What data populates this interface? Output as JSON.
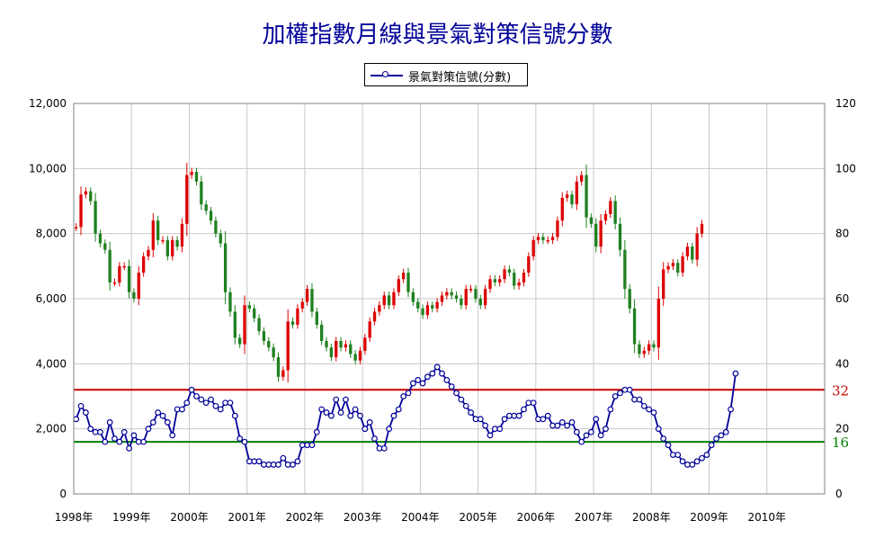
{
  "chart_data": {
    "type": "candlestick+line",
    "title": "加權指數月線與景氣對策信號分數",
    "legend": {
      "label": "景氣對策信號(分數)",
      "placement": "top-center"
    },
    "left_axis": {
      "ylim": [
        0,
        12000
      ],
      "ticks": [
        "0",
        "2,000",
        "4,000",
        "6,000",
        "8,000",
        "10,000",
        "12,000"
      ],
      "values": [
        0,
        2000,
        4000,
        6000,
        8000,
        10000,
        12000
      ]
    },
    "right_axis": {
      "ylim": [
        0,
        120
      ],
      "ticks": [
        "0",
        "20",
        "40",
        "60",
        "80",
        "100",
        "120"
      ],
      "values": [
        0,
        20,
        40,
        60,
        80,
        100,
        120
      ]
    },
    "x_axis": {
      "start": 1998.0,
      "end": 2011.0,
      "labels": [
        "1998年",
        "1999年",
        "2000年",
        "2001年",
        "2002年",
        "2003年",
        "2004年",
        "2005年",
        "2006年",
        "2007年",
        "2008年",
        "2009年",
        "2010年"
      ]
    },
    "grid": true,
    "reference_lines": [
      {
        "label": "32",
        "value": 32,
        "color": "#cc0000"
      },
      {
        "label": "16",
        "value": 16,
        "color": "#008000"
      }
    ],
    "colors": {
      "up": "#dd0000",
      "down": "#208020",
      "signal": "#000099"
    },
    "index_close": [
      8200,
      9200,
      9300,
      9000,
      8000,
      7700,
      7500,
      6500,
      6500,
      7000,
      7000,
      6200,
      6000,
      6800,
      7300,
      7500,
      8400,
      7800,
      7800,
      7300,
      7800,
      7600,
      8300,
      9800,
      9900,
      9600,
      8900,
      8700,
      8400,
      8000,
      7700,
      6200,
      5600,
      4800,
      4600,
      5800,
      5700,
      5400,
      5000,
      4700,
      4500,
      4200,
      3600,
      3800,
      5300,
      5200,
      5700,
      5900,
      6300,
      5600,
      5200,
      4700,
      4500,
      4200,
      4700,
      4500,
      4600,
      4300,
      4100,
      4400,
      4800,
      5300,
      5600,
      5800,
      6100,
      5800,
      6200,
      6600,
      6800,
      6200,
      5900,
      5700,
      5500,
      5800,
      5700,
      5900,
      6100,
      6200,
      6100,
      6000,
      5800,
      6300,
      6300,
      6000,
      5800,
      6300,
      6600,
      6500,
      6600,
      6900,
      6800,
      6400,
      6500,
      6800,
      7300,
      7800,
      7900,
      7800,
      7800,
      7900,
      8400,
      9100,
      9200,
      8900,
      9600,
      9800,
      8500,
      8300,
      7600,
      8400,
      8600,
      9000,
      8300,
      7500,
      6300,
      5700,
      4600,
      4300,
      4400,
      4600,
      4500,
      6000,
      6900,
      7000,
      7100,
      6800,
      7300,
      7600,
      7200,
      8000,
      8300
    ],
    "signal_scores": [
      23,
      27,
      25,
      20,
      19,
      19,
      16,
      22,
      17,
      16,
      19,
      14,
      18,
      16,
      16,
      20,
      22,
      25,
      24,
      22,
      18,
      26,
      26,
      28,
      32,
      30,
      29,
      28,
      29,
      27,
      26,
      28,
      28,
      24,
      17,
      16,
      10,
      10,
      10,
      9,
      9,
      9,
      9,
      11,
      9,
      9,
      10,
      15,
      15,
      15,
      19,
      26,
      25,
      24,
      29,
      25,
      29,
      24,
      26,
      24,
      20,
      22,
      17,
      14,
      14,
      20,
      24,
      26,
      30,
      31,
      34,
      35,
      34,
      36,
      37,
      39,
      37,
      35,
      33,
      31,
      29,
      27,
      25,
      23,
      23,
      21,
      18,
      20,
      20,
      23,
      24,
      24,
      24,
      26,
      28,
      28,
      23,
      23,
      24,
      21,
      21,
      22,
      21,
      22,
      19,
      16,
      18,
      19,
      23,
      18,
      20,
      26,
      30,
      31,
      32,
      32,
      29,
      29,
      27,
      26,
      25,
      20,
      17,
      15,
      12,
      12,
      10,
      9,
      9,
      10,
      11,
      12,
      15,
      17,
      18,
      19,
      26,
      37
    ]
  }
}
